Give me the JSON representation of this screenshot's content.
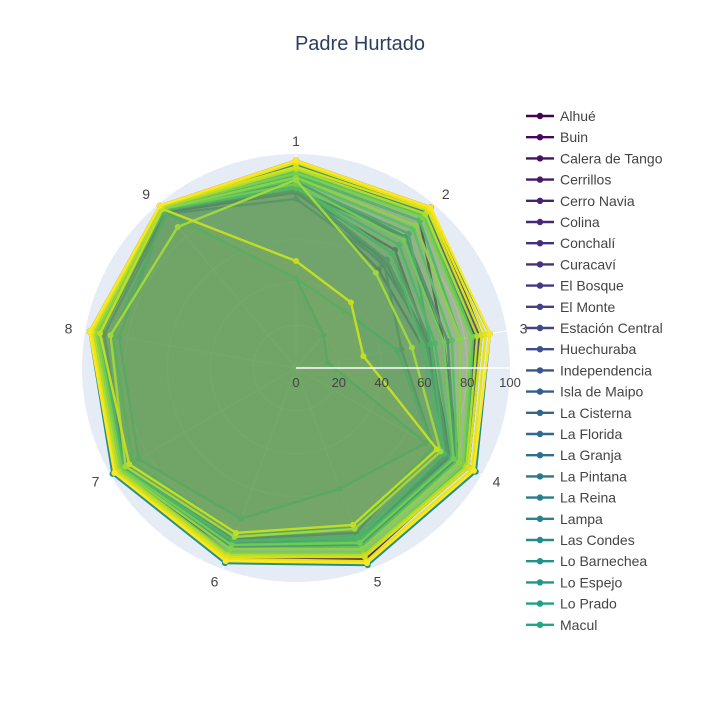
{
  "chart_data": {
    "type": "radar",
    "title": "Padre Hurtado",
    "axes": [
      "1",
      "2",
      "3",
      "4",
      "5",
      "6",
      "7",
      "8",
      "9"
    ],
    "radial_ticks": [
      "0",
      "20",
      "40",
      "60",
      "80",
      "100"
    ],
    "range": [
      0,
      100
    ],
    "legend_position": "right",
    "series": [
      {
        "name": "Alhué",
        "color": "#440154",
        "values": [
          97,
          98,
          86,
          92,
          95,
          94,
          97,
          98,
          99
        ]
      },
      {
        "name": "Buin",
        "color": "#46085c",
        "values": [
          90,
          90,
          70,
          88,
          89,
          90,
          96,
          94,
          98
        ]
      },
      {
        "name": "Calera de Tango",
        "color": "#471063",
        "values": [
          93,
          95,
          85,
          93,
          92,
          92,
          95,
          95,
          98
        ]
      },
      {
        "name": "Cerrillos",
        "color": "#48186a",
        "values": [
          82,
          72,
          63,
          84,
          86,
          88,
          94,
          93,
          95
        ]
      },
      {
        "name": "Cerro Navia",
        "color": "#482071",
        "values": [
          85,
          60,
          60,
          80,
          84,
          86,
          93,
          94,
          96
        ]
      },
      {
        "name": "Colina",
        "color": "#472777",
        "values": [
          94,
          98,
          88,
          93,
          94,
          93,
          96,
          96,
          99
        ]
      },
      {
        "name": "Conchalí",
        "color": "#472d7b",
        "values": [
          84,
          65,
          62,
          82,
          85,
          87,
          94,
          94,
          97
        ]
      },
      {
        "name": "Curacaví",
        "color": "#46327e",
        "values": [
          95,
          96,
          87,
          93,
          94,
          93,
          96,
          97,
          99
        ]
      },
      {
        "name": "El Bosque",
        "color": "#443983",
        "values": [
          82,
          66,
          63,
          83,
          86,
          88,
          93,
          93,
          96
        ]
      },
      {
        "name": "El Monte",
        "color": "#424086",
        "values": [
          93,
          95,
          86,
          92,
          93,
          93,
          96,
          96,
          98
        ]
      },
      {
        "name": "Estación Central",
        "color": "#3f4788",
        "values": [
          86,
          63,
          64,
          82,
          85,
          87,
          93,
          94,
          96
        ]
      },
      {
        "name": "Huechuraba",
        "color": "#3c4f8a",
        "values": [
          83,
          80,
          70,
          85,
          87,
          88,
          94,
          94,
          97
        ]
      },
      {
        "name": "Independencia",
        "color": "#39558c",
        "values": [
          79,
          64,
          50,
          74,
          82,
          85,
          92,
          91,
          94
        ]
      },
      {
        "name": "Isla de Maipo",
        "color": "#355d8d",
        "values": [
          94,
          96,
          86,
          93,
          93,
          93,
          96,
          96,
          99
        ]
      },
      {
        "name": "La Cisterna",
        "color": "#32648e",
        "values": [
          84,
          70,
          64,
          82,
          86,
          87,
          94,
          93,
          96
        ]
      },
      {
        "name": "La Florida",
        "color": "#2f6b8e",
        "values": [
          87,
          80,
          72,
          86,
          88,
          89,
          94,
          95,
          97
        ]
      },
      {
        "name": "La Granja",
        "color": "#2d718e",
        "values": [
          84,
          66,
          62,
          81,
          85,
          87,
          93,
          93,
          96
        ]
      },
      {
        "name": "La Pintana",
        "color": "#2a788e",
        "values": [
          87,
          78,
          70,
          86,
          88,
          89,
          95,
          95,
          97
        ]
      },
      {
        "name": "La Reina",
        "color": "#287d8e",
        "values": [
          42,
          20,
          15,
          70,
          60,
          75,
          85,
          84,
          95
        ]
      },
      {
        "name": "Lampa",
        "color": "#25848e",
        "values": [
          92,
          95,
          84,
          92,
          93,
          92,
          96,
          95,
          98
        ]
      },
      {
        "name": "Las Condes",
        "color": "#238a8d",
        "values": [
          42,
          35,
          48,
          74,
          80,
          82,
          88,
          87,
          94
        ]
      },
      {
        "name": "Lo Barnechea",
        "color": "#20928c",
        "values": [
          95,
          97,
          92,
          97,
          98,
          97,
          99,
          98,
          99
        ]
      },
      {
        "name": "Lo Espejo",
        "color": "#1f988b",
        "values": [
          86,
          82,
          64,
          80,
          85,
          86,
          94,
          94,
          96
        ]
      },
      {
        "name": "Lo Prado",
        "color": "#1fa188",
        "values": [
          85,
          70,
          60,
          80,
          84,
          86,
          93,
          93,
          96
        ]
      },
      {
        "name": "Macul",
        "color": "#22a785",
        "values": [
          84,
          75,
          66,
          84,
          86,
          88,
          94,
          94,
          97
        ]
      },
      {
        "name": "",
        "color": "#2ab07f",
        "values": [
          90,
          90,
          78,
          88,
          90,
          90,
          95,
          95,
          98
        ]
      },
      {
        "name": "",
        "color": "#35b779",
        "values": [
          88,
          85,
          74,
          87,
          89,
          90,
          95,
          95,
          97
        ]
      },
      {
        "name": "",
        "color": "#42be71",
        "values": [
          92,
          93,
          84,
          91,
          92,
          92,
          96,
          96,
          98
        ]
      },
      {
        "name": "",
        "color": "#52c569",
        "values": [
          86,
          78,
          70,
          85,
          87,
          88,
          94,
          94,
          97
        ]
      },
      {
        "name": "",
        "color": "#65cb5e",
        "values": [
          91,
          92,
          83,
          90,
          92,
          92,
          96,
          96,
          98
        ]
      },
      {
        "name": "",
        "color": "#7ad151",
        "values": [
          89,
          87,
          78,
          88,
          90,
          90,
          95,
          95,
          97
        ]
      },
      {
        "name": "",
        "color": "#8fd744",
        "values": [
          88,
          58,
          55,
          78,
          80,
          84,
          92,
          88,
          86
        ]
      },
      {
        "name": "",
        "color": "#a5db36",
        "values": [
          93,
          94,
          86,
          92,
          93,
          93,
          96,
          96,
          98
        ]
      },
      {
        "name": "",
        "color": "#bddf26",
        "values": [
          50,
          40,
          32,
          76,
          78,
          82,
          90,
          93,
          97
        ]
      },
      {
        "name": "",
        "color": "#d2e21b",
        "values": [
          94,
          96,
          88,
          93,
          94,
          94,
          97,
          97,
          99
        ]
      },
      {
        "name": "",
        "color": "#e5e419",
        "values": [
          96,
          97,
          90,
          95,
          96,
          95,
          98,
          97,
          99
        ]
      },
      {
        "name": "",
        "color": "#fde725",
        "values": [
          97,
          98,
          92,
          96,
          97,
          96,
          98,
          98,
          99
        ]
      }
    ]
  }
}
